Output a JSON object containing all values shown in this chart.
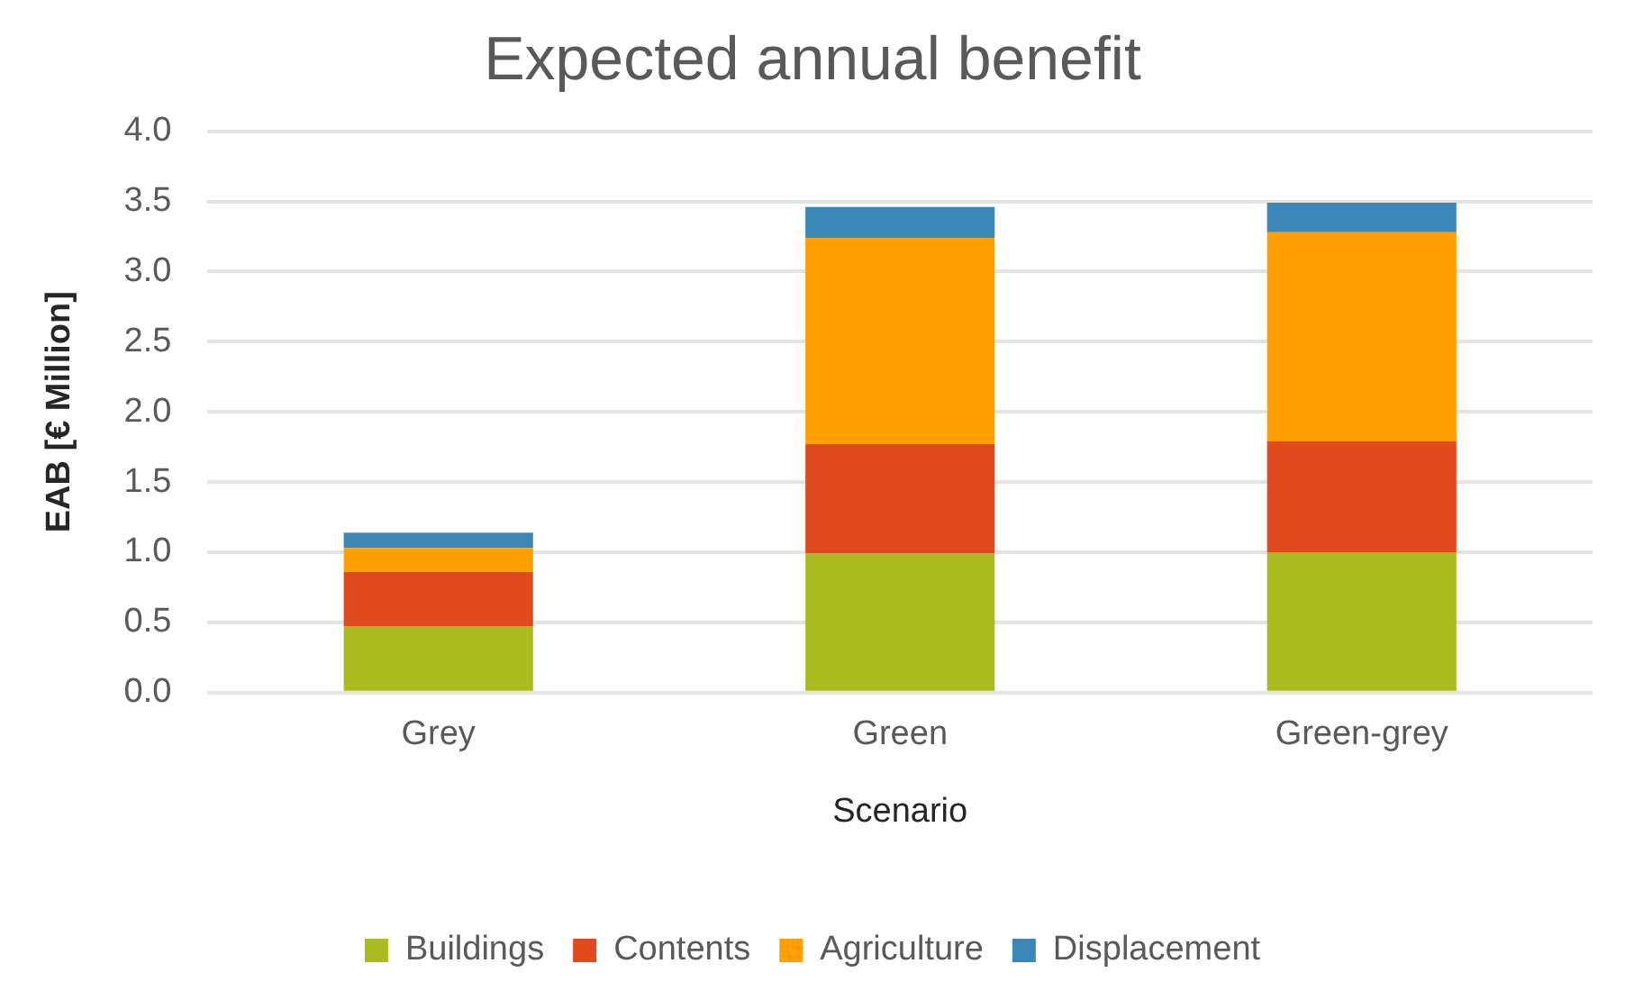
{
  "chart_data": {
    "type": "bar",
    "title": "Expected annual benefit",
    "xlabel": "Scenario",
    "ylabel": "EAB [€ Million]",
    "categories": [
      "Grey",
      "Green",
      "Green-grey"
    ],
    "stacked": true,
    "ylim": [
      0,
      4
    ],
    "yticks": [
      {
        "value": 0,
        "label": "0.0"
      },
      {
        "value": 0.5,
        "label": "0.5"
      },
      {
        "value": 1,
        "label": "1.0"
      },
      {
        "value": 1.5,
        "label": "1.5"
      },
      {
        "value": 2,
        "label": "2.0"
      },
      {
        "value": 2.5,
        "label": "2.5"
      },
      {
        "value": 3,
        "label": "3.0"
      },
      {
        "value": 3.5,
        "label": "3.5"
      },
      {
        "value": 4,
        "label": "4.0"
      }
    ],
    "grid": "y",
    "legend": "bottom",
    "series": [
      {
        "name": "Buildings",
        "color": "#a9bb1f",
        "values": [
          0.47,
          0.99,
          1.0
        ]
      },
      {
        "name": "Contents",
        "color": "#e04a1c",
        "values": [
          0.39,
          0.78,
          0.79
        ]
      },
      {
        "name": "Agriculture",
        "color": "#ffa000",
        "values": [
          0.17,
          1.47,
          1.49
        ]
      },
      {
        "name": "Displacement",
        "color": "#3a87b8",
        "values": [
          0.11,
          0.22,
          0.21
        ]
      }
    ]
  }
}
